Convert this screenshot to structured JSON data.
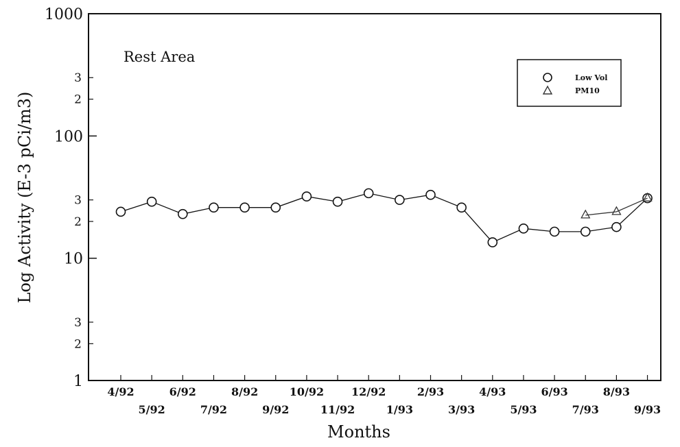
{
  "chart_data": {
    "type": "line",
    "title": "",
    "annotation": "Rest Area",
    "xlabel": "Months",
    "ylabel": "Log Activity (E-3 pCi/m3)",
    "y_scale": "log",
    "ylim": [
      1,
      1000
    ],
    "y_major_ticks": [
      {
        "value": 1,
        "label": "1"
      },
      {
        "value": 10,
        "label": "10"
      },
      {
        "value": 100,
        "label": "100"
      },
      {
        "value": 1000,
        "label": "1000"
      }
    ],
    "y_minor_ticks": [
      {
        "value": 2,
        "label": "2"
      },
      {
        "value": 3,
        "label": "3"
      },
      {
        "value": 20,
        "label": "2"
      },
      {
        "value": 30,
        "label": "3"
      },
      {
        "value": 200,
        "label": "2"
      },
      {
        "value": 300,
        "label": "3"
      }
    ],
    "categories": [
      "4/92",
      "5/92",
      "6/92",
      "7/92",
      "8/92",
      "9/92",
      "10/92",
      "11/92",
      "12/92",
      "1/93",
      "2/93",
      "3/93",
      "4/93",
      "5/93",
      "6/93",
      "7/93",
      "8/93",
      "9/93"
    ],
    "grid": false,
    "legend_position": "top-right",
    "series": [
      {
        "name": "Low Vol",
        "marker": "circle",
        "color": "#111111",
        "values": [
          24,
          29,
          23,
          26,
          26,
          26,
          32,
          29,
          34,
          30,
          33,
          26,
          13.5,
          17.5,
          16.5,
          16.5,
          18,
          31
        ]
      },
      {
        "name": "PM10",
        "marker": "triangle",
        "color": "#333333",
        "values": [
          null,
          null,
          null,
          null,
          null,
          null,
          null,
          null,
          null,
          null,
          null,
          null,
          null,
          null,
          null,
          22.5,
          24,
          31
        ]
      }
    ]
  }
}
